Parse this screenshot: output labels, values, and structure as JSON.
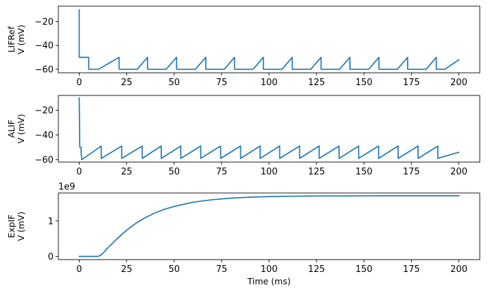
{
  "chart_data": [
    {
      "type": "line",
      "ylabel_lines": [
        "LIFRef",
        "V (mV)"
      ],
      "xlabel": "",
      "xlim": [
        -11,
        211
      ],
      "ylim": [
        -63,
        -7
      ],
      "xticks": [
        0,
        25,
        50,
        75,
        100,
        125,
        150,
        175,
        200
      ],
      "xtick_labels": [
        "0",
        "25",
        "50",
        "75",
        "100",
        "125",
        "150",
        "175",
        "200"
      ],
      "yticks": [
        -60,
        -40,
        -20
      ],
      "ytick_labels": [
        "−60",
        "−40",
        "−20"
      ],
      "offset_text": "",
      "grid": false,
      "color": "#1f77b4",
      "series": [
        {
          "x": [
            0,
            0.01,
            0.02,
            5,
            5.01,
            10.2,
            21,
            21.01,
            25.4,
            25.41,
            30.6,
            36,
            36.01,
            40.6,
            40.61,
            45.8,
            51.3,
            51.31,
            56,
            56.01,
            61.2,
            66.7,
            66.71,
            71.3,
            71.31,
            76.5,
            81.8,
            81.81,
            86.4,
            86.41,
            91.6,
            97,
            97.01,
            101.7,
            101.71,
            106.9,
            112.2,
            112.21,
            116.8,
            116.81,
            122,
            127.4,
            127.41,
            132,
            132.01,
            137.2,
            142.6,
            142.61,
            147.3,
            147.31,
            152.5,
            157.9,
            157.91,
            162.4,
            162.41,
            167.6,
            173,
            173.01,
            177.6,
            177.61,
            182.8,
            188.1,
            188.11,
            192.7,
            192.71,
            200
          ],
          "y": [
            -10,
            -50,
            -50,
            -50,
            -60,
            -60,
            -50,
            -60,
            -60,
            -60,
            -60,
            -50,
            -60,
            -60,
            -60,
            -60,
            -50,
            -60,
            -60,
            -60,
            -60,
            -50,
            -60,
            -60,
            -60,
            -60,
            -50,
            -60,
            -60,
            -60,
            -60,
            -50,
            -60,
            -60,
            -60,
            -60,
            -50,
            -60,
            -60,
            -60,
            -60,
            -50,
            -60,
            -60,
            -60,
            -60,
            -50,
            -60,
            -60,
            -60,
            -60,
            -50,
            -60,
            -60,
            -60,
            -60,
            -50,
            -60,
            -60,
            -60,
            -60,
            -50,
            -60,
            -60,
            -60,
            -52
          ]
        }
      ]
    },
    {
      "type": "line",
      "ylabel_lines": [
        "ALIF",
        "V (mV)"
      ],
      "xlabel": "",
      "xlim": [
        -11,
        211
      ],
      "ylim": [
        -62,
        -8
      ],
      "xticks": [
        0,
        25,
        50,
        75,
        100,
        125,
        150,
        175,
        200
      ],
      "xtick_labels": [
        "0",
        "25",
        "50",
        "75",
        "100",
        "125",
        "150",
        "175",
        "200"
      ],
      "yticks": [
        -60,
        -40,
        -20
      ],
      "ytick_labels": [
        "−60",
        "−40",
        "−20"
      ],
      "offset_text": "",
      "grid": false,
      "color": "#1f77b4",
      "series": [
        {
          "x": [
            0,
            0.3,
            0.31,
            1.0,
            1.01,
            1.4,
            11.6,
            11.61,
            22.4,
            22.41,
            33.2,
            33.21,
            43.2,
            43.21,
            53.5,
            53.51,
            64,
            64.01,
            74.5,
            74.51,
            85,
            85.01,
            95.3,
            95.31,
            105.6,
            105.61,
            116.1,
            116.11,
            126.4,
            126.41,
            136.9,
            136.91,
            147.2,
            147.21,
            157.7,
            157.71,
            168,
            168.01,
            178.5,
            178.51,
            188.9,
            188.91,
            200
          ],
          "y": [
            -10,
            -50,
            -50,
            -50,
            -55,
            -60,
            -49,
            -59,
            -49,
            -59,
            -49,
            -59,
            -49,
            -59,
            -49,
            -59,
            -49,
            -59,
            -49,
            -59,
            -49,
            -59,
            -49,
            -59,
            -49,
            -59,
            -49,
            -59,
            -49,
            -59,
            -49,
            -59,
            -49,
            -59,
            -49,
            -59,
            -49,
            -59,
            -49,
            -59,
            -49,
            -59,
            -54
          ]
        }
      ]
    },
    {
      "type": "line",
      "ylabel_lines": [
        "ExpIF",
        "V (mV)"
      ],
      "xlabel": "Time (ms)",
      "xlim": [
        -11,
        211
      ],
      "ylim": [
        -0.09,
        1.79
      ],
      "xticks": [
        0,
        25,
        50,
        75,
        100,
        125,
        150,
        175,
        200
      ],
      "xtick_labels": [
        "0",
        "25",
        "50",
        "75",
        "100",
        "125",
        "150",
        "175",
        "200"
      ],
      "yticks": [
        0,
        1
      ],
      "ytick_labels": [
        "0",
        "1"
      ],
      "offset_text": "1e9",
      "grid": false,
      "color": "#1f77b4",
      "series": [
        {
          "x": [
            0,
            10,
            12,
            15,
            20,
            25,
            30,
            35,
            40,
            45,
            50,
            60,
            70,
            80,
            90,
            100,
            110,
            120,
            130,
            140,
            150,
            160,
            170,
            180,
            190,
            200
          ],
          "y": [
            0,
            0,
            0.06,
            0.24,
            0.5,
            0.74,
            0.94,
            1.1,
            1.23,
            1.33,
            1.41,
            1.53,
            1.6,
            1.645,
            1.672,
            1.688,
            1.697,
            1.703,
            1.706,
            1.708,
            1.709,
            1.71,
            1.71,
            1.71,
            1.71,
            1.71
          ]
        }
      ]
    }
  ]
}
